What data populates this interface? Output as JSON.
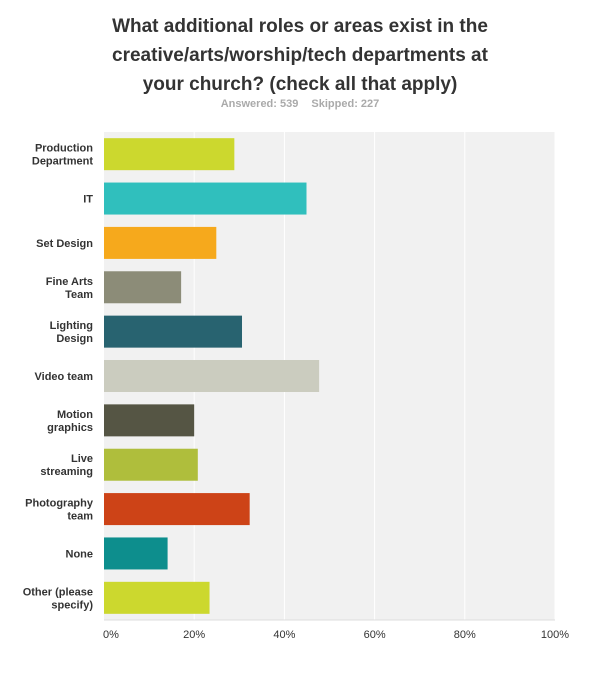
{
  "header": {
    "title_lines": [
      "What additional roles or areas exist in the",
      "creative/arts/worship/tech departments at",
      "your church? (check all that apply)"
    ],
    "answered": "Answered: 539",
    "skipped": "Skipped: 227"
  },
  "chart_data": {
    "type": "bar",
    "orientation": "horizontal",
    "categories": [
      [
        "Production",
        "Department"
      ],
      [
        "IT"
      ],
      [
        "Set Design"
      ],
      [
        "Fine Arts",
        "Team"
      ],
      [
        "Lighting",
        "Design"
      ],
      [
        "Video team"
      ],
      [
        "Motion",
        "graphics"
      ],
      [
        "Live",
        "streaming"
      ],
      [
        "Photography",
        "team"
      ],
      [
        "None"
      ],
      [
        "Other (please",
        "specify)"
      ]
    ],
    "values": [
      28.9,
      44.9,
      24.9,
      17.1,
      30.6,
      47.7,
      20.0,
      20.8,
      32.3,
      14.1,
      23.4
    ],
    "colors": [
      "#ccd82e",
      "#30bfbd",
      "#f6a91c",
      "#8c8c78",
      "#286370",
      "#cbccbf",
      "#555544",
      "#afbe3c",
      "#cd4317",
      "#0d8e8d",
      "#ccd82e"
    ],
    "xlim": [
      0,
      100
    ],
    "ticks": [
      "0%",
      "20%",
      "40%",
      "60%",
      "80%",
      "100%"
    ],
    "tick_values": [
      0,
      20,
      40,
      60,
      80,
      100
    ],
    "grid": true,
    "background": "#f1f1f1",
    "gridline_color": "#ffffff"
  }
}
